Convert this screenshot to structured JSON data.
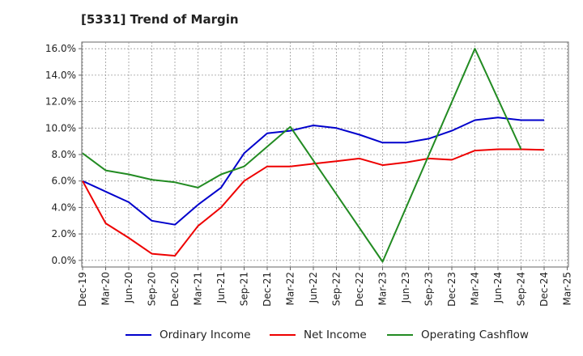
{
  "chart_data": {
    "type": "line",
    "title": "[5331]  Trend of Margin",
    "xlabel": "",
    "ylabel": "",
    "categories": [
      "Dec-19",
      "Mar-20",
      "Jun-20",
      "Sep-20",
      "Dec-20",
      "Mar-21",
      "Jun-21",
      "Sep-21",
      "Dec-21",
      "Mar-22",
      "Jun-22",
      "Sep-22",
      "Dec-22",
      "Mar-23",
      "Jun-23",
      "Sep-23",
      "Dec-23",
      "Mar-24",
      "Jun-24",
      "Sep-24",
      "Dec-24",
      "Mar-25"
    ],
    "ylim": [
      -0.5,
      16.5
    ],
    "yticks": [
      "0.0%",
      "2.0%",
      "4.0%",
      "6.0%",
      "8.0%",
      "10.0%",
      "12.0%",
      "14.0%",
      "16.0%"
    ],
    "ytick_values": [
      0,
      2,
      4,
      6,
      8,
      10,
      12,
      14,
      16
    ],
    "grid": true,
    "legend_position": "bottom",
    "series": [
      {
        "name": "Ordinary Income",
        "color": "#0000cc",
        "values": [
          6.0,
          5.2,
          4.4,
          3.0,
          2.7,
          4.2,
          5.5,
          8.1,
          9.6,
          9.8,
          10.2,
          10.0,
          9.5,
          8.9,
          8.9,
          9.2,
          9.8,
          10.6,
          10.8,
          10.6,
          10.6,
          null
        ]
      },
      {
        "name": "Net Income",
        "color": "#ee0000",
        "values": [
          6.0,
          2.8,
          1.7,
          0.5,
          0.35,
          2.6,
          4.0,
          6.0,
          7.1,
          7.1,
          7.3,
          7.5,
          7.7,
          7.2,
          7.4,
          7.7,
          7.6,
          8.3,
          8.4,
          8.4,
          8.35,
          null
        ]
      },
      {
        "name": "Operating Cashflow",
        "color": "#228B22",
        "values": [
          8.1,
          6.8,
          6.5,
          6.1,
          5.9,
          5.5,
          6.5,
          7.1,
          null,
          10.1,
          null,
          null,
          null,
          -0.1,
          null,
          null,
          null,
          16.0,
          null,
          8.4,
          null,
          null
        ]
      }
    ]
  }
}
